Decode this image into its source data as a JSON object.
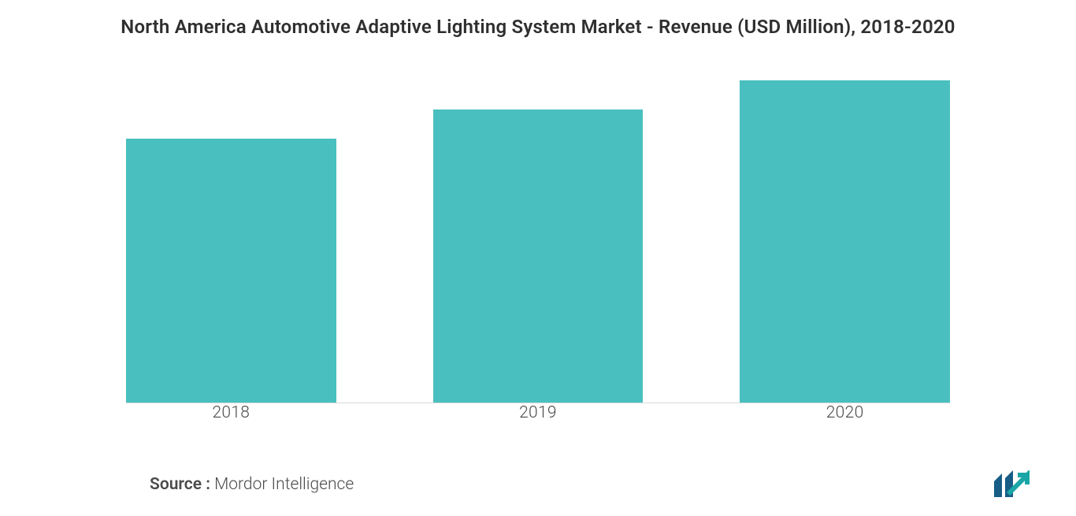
{
  "chart": {
    "type": "bar",
    "title": "North America Automotive Adaptive Lighting System Market - Revenue (USD Million), 2018-2020",
    "title_fontsize": 24,
    "title_color": "#2f2f2f",
    "categories": [
      "2018",
      "2019",
      "2020"
    ],
    "values": [
      82,
      91,
      100
    ],
    "ylim": [
      0,
      100
    ],
    "bar_colors": [
      "#49bfbf",
      "#49bfbf",
      "#49bfbf"
    ],
    "bar_slot_width_pct": 25.5,
    "bar_positions_pct": [
      0,
      37.25,
      74.5
    ],
    "background_color": "#ffffff",
    "axis_line_color": "#d9d9d9",
    "x_label_fontsize": 21,
    "x_label_color": "#4a4a4a"
  },
  "source": {
    "label": "Source :",
    "value": " Mordor Intelligence",
    "fontsize": 21,
    "label_weight": 600,
    "value_weight": 300,
    "color": "#4a4a4a"
  },
  "logo": {
    "name": "mordor-intelligence-logo",
    "bar_color": "#175d86",
    "arrow_color": "#1aa6a6"
  }
}
